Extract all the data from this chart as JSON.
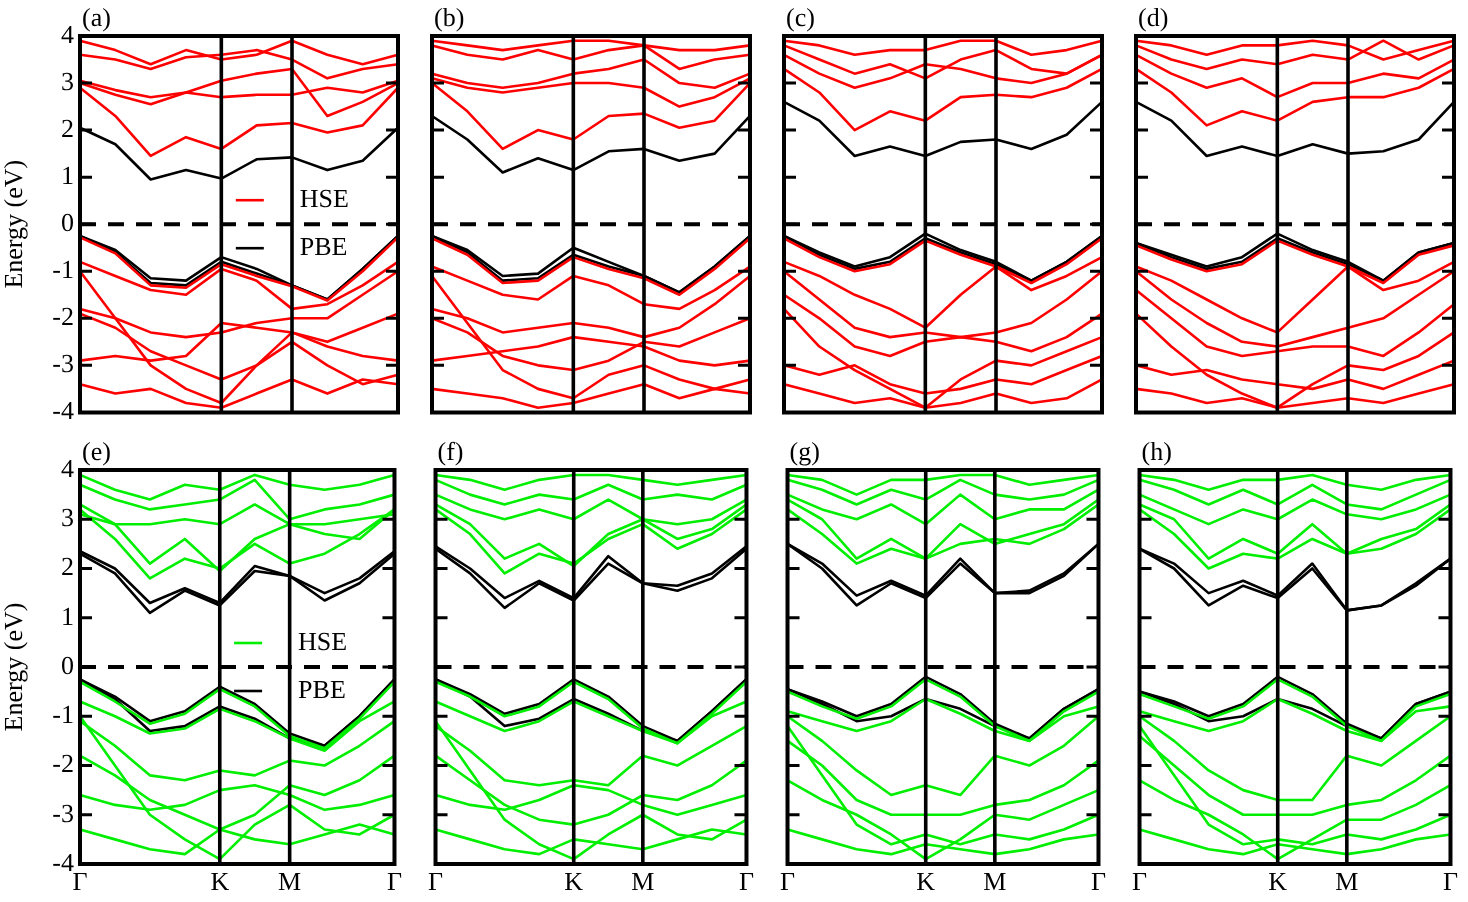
{
  "chart_data": [
    {
      "type": "line",
      "title": "(a)",
      "ylabel": "Energy (eV)",
      "categories": [
        "Γ",
        null,
        null,
        null,
        "K",
        null,
        "M",
        null,
        null,
        "Γ"
      ],
      "ylim": [
        -4,
        4
      ],
      "yticks": [
        -4,
        -3,
        -2,
        -1,
        0,
        1,
        2,
        3,
        4
      ],
      "tick_labels": "y",
      "legend": "center",
      "ref_lines": [
        {
          "axis": "x",
          "value": "K",
          "color": "#000000"
        },
        {
          "axis": "x",
          "value": "M",
          "color": "#000000"
        },
        {
          "axis": "y",
          "value": 0,
          "color": "#000000",
          "line_style": "dashed"
        }
      ],
      "series": [
        {
          "name": "HSE",
          "color": "#ff0000",
          "values": [
            2.9,
            2.3,
            1.45,
            1.85,
            1.6,
            2.1,
            2.15,
            1.95,
            2.1,
            2.9
          ]
        },
        {
          "name": "PBE",
          "color": "#000000",
          "values": [
            2.05,
            1.7,
            0.95,
            1.15,
            0.97,
            1.38,
            1.42,
            1.15,
            1.35,
            2.05
          ]
        },
        {
          "color": "#ff0000",
          "values": [
            3.0,
            2.75,
            2.55,
            2.8,
            3.05,
            3.2,
            3.3,
            2.3,
            2.6,
            3.0
          ]
        },
        {
          "color": "#ff0000",
          "values": [
            3.05,
            2.85,
            2.7,
            2.8,
            2.7,
            2.75,
            2.75,
            2.9,
            2.8,
            3.05
          ]
        },
        {
          "color": "#ff0000",
          "values": [
            3.6,
            3.5,
            3.3,
            3.55,
            3.6,
            3.7,
            3.5,
            3.1,
            3.3,
            3.4
          ]
        },
        {
          "color": "#ff0000",
          "values": [
            3.9,
            3.7,
            3.4,
            3.7,
            3.5,
            3.6,
            3.9,
            3.6,
            3.4,
            3.6
          ]
        },
        {
          "color": "#ff0000",
          "values": [
            -0.28,
            -0.62,
            -1.3,
            -1.35,
            -0.85,
            -1.1,
            -1.32,
            -1.62,
            -1.0,
            -0.28
          ]
        },
        {
          "color": "#ff0000",
          "values": [
            -0.8,
            -1.1,
            -1.4,
            -1.5,
            -0.95,
            -1.2,
            -1.8,
            -1.7,
            -1.3,
            -0.8
          ]
        },
        {
          "color": "#ff0000",
          "values": [
            -1.8,
            -2.0,
            -2.3,
            -2.4,
            -2.3,
            -2.1,
            -2.0,
            -2.0,
            -1.5,
            -1.0
          ]
        },
        {
          "color": "#ff0000",
          "values": [
            -1.9,
            -2.2,
            -2.7,
            -3.0,
            -3.3,
            -3.0,
            -2.3,
            -2.5,
            -2.2,
            -1.9
          ]
        },
        {
          "color": "#ff0000",
          "values": [
            -2.9,
            -2.8,
            -2.9,
            -2.8,
            -2.1,
            -2.2,
            -2.3,
            -2.6,
            -2.8,
            -2.9
          ]
        },
        {
          "color": "#ff0000",
          "values": [
            -1.0,
            -2.0,
            -3.0,
            -3.5,
            -3.8,
            -3.0,
            -2.5,
            -3.0,
            -3.4,
            -3.2
          ]
        },
        {
          "color": "#ff0000",
          "values": [
            -3.4,
            -3.6,
            -3.5,
            -3.8,
            -3.9,
            -3.6,
            -3.3,
            -3.6,
            -3.3,
            -3.4
          ]
        },
        {
          "color": "#000000",
          "values": [
            -0.25,
            -0.55,
            -1.15,
            -1.2,
            -0.7,
            -0.95,
            -1.3,
            -1.6,
            -0.95,
            -0.25
          ]
        },
        {
          "color": "#000000",
          "values": [
            -0.25,
            -0.6,
            -1.25,
            -1.3,
            -0.8,
            -1.05,
            -1.3,
            -1.6,
            -0.95,
            -0.25
          ]
        }
      ]
    },
    {
      "type": "line",
      "title": "(b)",
      "categories": [
        "Γ",
        null,
        null,
        null,
        "K",
        null,
        "M",
        null,
        null,
        "Γ"
      ],
      "ylim": [
        -4,
        4
      ],
      "yticks": [
        -4,
        -3,
        -2,
        -1,
        0,
        1,
        2,
        3,
        4
      ],
      "tick_labels": false,
      "ref_lines": [
        {
          "axis": "x",
          "value": "K",
          "color": "#000000"
        },
        {
          "axis": "x",
          "value": "M",
          "color": "#000000"
        },
        {
          "axis": "y",
          "value": 0,
          "color": "#000000",
          "line_style": "dashed"
        }
      ],
      "series": [
        {
          "color": "#ff0000",
          "values": [
            3.0,
            2.4,
            1.6,
            2.0,
            1.8,
            2.3,
            2.35,
            2.05,
            2.2,
            3.0
          ]
        },
        {
          "color": "#000000",
          "values": [
            2.3,
            1.8,
            1.1,
            1.4,
            1.15,
            1.55,
            1.6,
            1.35,
            1.5,
            2.3
          ]
        },
        {
          "color": "#ff0000",
          "values": [
            3.1,
            2.9,
            2.8,
            2.9,
            3.0,
            3.0,
            2.9,
            2.5,
            2.7,
            3.1
          ]
        },
        {
          "color": "#ff0000",
          "values": [
            3.2,
            3.0,
            2.9,
            3.0,
            3.2,
            3.3,
            3.5,
            3.0,
            2.9,
            3.2
          ]
        },
        {
          "color": "#ff0000",
          "values": [
            3.8,
            3.6,
            3.5,
            3.7,
            3.5,
            3.7,
            3.8,
            3.3,
            3.5,
            3.6
          ]
        },
        {
          "color": "#ff0000",
          "values": [
            3.9,
            3.8,
            3.7,
            3.8,
            3.9,
            3.9,
            3.8,
            3.7,
            3.7,
            3.8
          ]
        },
        {
          "color": "#ff0000",
          "values": [
            -0.3,
            -0.65,
            -1.25,
            -1.2,
            -0.7,
            -0.95,
            -1.15,
            -1.5,
            -0.95,
            -0.3
          ]
        },
        {
          "color": "#ff0000",
          "values": [
            -0.9,
            -1.2,
            -1.5,
            -1.6,
            -1.1,
            -1.3,
            -1.7,
            -1.8,
            -1.4,
            -0.9
          ]
        },
        {
          "color": "#ff0000",
          "values": [
            -1.8,
            -2.0,
            -2.3,
            -2.2,
            -2.1,
            -2.2,
            -2.4,
            -2.2,
            -1.7,
            -1.1
          ]
        },
        {
          "color": "#ff0000",
          "values": [
            -2.0,
            -2.3,
            -2.8,
            -3.0,
            -3.1,
            -2.9,
            -2.5,
            -2.6,
            -2.3,
            -2.0
          ]
        },
        {
          "color": "#ff0000",
          "values": [
            -2.9,
            -2.8,
            -2.7,
            -2.6,
            -2.4,
            -2.5,
            -2.6,
            -2.9,
            -3.0,
            -2.9
          ]
        },
        {
          "color": "#ff0000",
          "values": [
            -1.1,
            -2.1,
            -3.1,
            -3.5,
            -3.7,
            -3.2,
            -3.0,
            -3.3,
            -3.5,
            -3.3
          ]
        },
        {
          "color": "#ff0000",
          "values": [
            -3.5,
            -3.6,
            -3.7,
            -3.9,
            -3.8,
            -3.6,
            -3.4,
            -3.7,
            -3.5,
            -3.6
          ]
        },
        {
          "color": "#000000",
          "values": [
            -0.25,
            -0.55,
            -1.1,
            -1.05,
            -0.5,
            -0.8,
            -1.1,
            -1.45,
            -0.9,
            -0.25
          ]
        },
        {
          "color": "#000000",
          "values": [
            -0.25,
            -0.6,
            -1.2,
            -1.15,
            -0.65,
            -0.9,
            -1.1,
            -1.45,
            -0.9,
            -0.25
          ]
        }
      ]
    },
    {
      "type": "line",
      "title": "(c)",
      "categories": [
        "Γ",
        null,
        null,
        null,
        "K",
        null,
        "M",
        null,
        null,
        "Γ"
      ],
      "ylim": [
        -4,
        4
      ],
      "yticks": [
        -4,
        -3,
        -2,
        -1,
        0,
        1,
        2,
        3,
        4
      ],
      "tick_labels": false,
      "ref_lines": [
        {
          "axis": "x",
          "value": "K",
          "color": "#000000"
        },
        {
          "axis": "x",
          "value": "M",
          "color": "#000000"
        },
        {
          "axis": "y",
          "value": 0,
          "color": "#000000",
          "line_style": "dashed"
        }
      ],
      "series": [
        {
          "color": "#ff0000",
          "values": [
            3.3,
            2.8,
            2.0,
            2.4,
            2.2,
            2.7,
            2.75,
            2.7,
            2.9,
            3.3
          ]
        },
        {
          "color": "#000000",
          "values": [
            2.6,
            2.2,
            1.45,
            1.65,
            1.45,
            1.75,
            1.8,
            1.6,
            1.9,
            2.6
          ]
        },
        {
          "color": "#ff0000",
          "values": [
            3.6,
            3.2,
            2.9,
            3.1,
            3.4,
            3.3,
            3.1,
            3.0,
            3.2,
            3.6
          ]
        },
        {
          "color": "#ff0000",
          "values": [
            3.8,
            3.5,
            3.2,
            3.4,
            3.1,
            3.5,
            3.7,
            3.3,
            3.2,
            3.6
          ]
        },
        {
          "color": "#ff0000",
          "values": [
            3.9,
            3.8,
            3.6,
            3.7,
            3.7,
            3.9,
            3.9,
            3.6,
            3.7,
            3.9
          ]
        },
        {
          "color": "#ff0000",
          "values": [
            -0.3,
            -0.7,
            -1.0,
            -0.85,
            -0.35,
            -0.65,
            -0.9,
            -1.25,
            -0.85,
            -0.3
          ]
        },
        {
          "color": "#ff0000",
          "values": [
            -0.8,
            -1.1,
            -1.5,
            -1.8,
            -2.2,
            -1.5,
            -0.9,
            -1.4,
            -1.1,
            -0.7
          ]
        },
        {
          "color": "#ff0000",
          "values": [
            -1.0,
            -1.6,
            -2.2,
            -2.4,
            -2.3,
            -2.4,
            -2.3,
            -2.1,
            -1.6,
            -1.0
          ]
        },
        {
          "color": "#ff0000",
          "values": [
            -1.5,
            -2.0,
            -2.6,
            -2.8,
            -2.5,
            -2.4,
            -2.5,
            -2.7,
            -2.4,
            -1.9
          ]
        },
        {
          "color": "#ff0000",
          "values": [
            -1.8,
            -2.6,
            -3.1,
            -3.5,
            -3.9,
            -3.3,
            -2.9,
            -3.0,
            -2.7,
            -2.4
          ]
        },
        {
          "color": "#ff0000",
          "values": [
            -3.0,
            -3.2,
            -3.0,
            -3.4,
            -3.6,
            -3.5,
            -3.3,
            -3.4,
            -3.1,
            -2.8
          ]
        },
        {
          "color": "#ff0000",
          "values": [
            -3.4,
            -3.6,
            -3.8,
            -3.7,
            -3.9,
            -3.8,
            -3.6,
            -3.8,
            -3.7,
            -3.3
          ]
        },
        {
          "color": "#000000",
          "values": [
            -0.25,
            -0.6,
            -0.9,
            -0.7,
            -0.2,
            -0.55,
            -0.8,
            -1.2,
            -0.8,
            -0.25
          ]
        },
        {
          "color": "#000000",
          "values": [
            -0.25,
            -0.65,
            -0.95,
            -0.8,
            -0.3,
            -0.6,
            -0.85,
            -1.2,
            -0.8,
            -0.25
          ]
        }
      ]
    },
    {
      "type": "line",
      "title": "(d)",
      "categories": [
        "Γ",
        null,
        null,
        null,
        "K",
        null,
        "M",
        null,
        null,
        "Γ"
      ],
      "ylim": [
        -4,
        4
      ],
      "yticks": [
        -4,
        -3,
        -2,
        -1,
        0,
        1,
        2,
        3,
        4
      ],
      "tick_labels": false,
      "ref_lines": [
        {
          "axis": "x",
          "value": "K",
          "color": "#000000"
        },
        {
          "axis": "x",
          "value": "M",
          "color": "#000000"
        },
        {
          "axis": "y",
          "value": 0,
          "color": "#000000",
          "line_style": "dashed"
        }
      ],
      "series": [
        {
          "color": "#ff0000",
          "values": [
            3.3,
            2.8,
            2.1,
            2.4,
            2.2,
            2.6,
            2.7,
            2.7,
            2.9,
            3.3
          ]
        },
        {
          "color": "#000000",
          "values": [
            2.6,
            2.2,
            1.45,
            1.65,
            1.45,
            1.7,
            1.5,
            1.55,
            1.8,
            2.6
          ]
        },
        {
          "color": "#ff0000",
          "values": [
            3.6,
            3.2,
            2.9,
            3.1,
            2.7,
            3.0,
            3.0,
            3.2,
            3.1,
            3.5
          ]
        },
        {
          "color": "#ff0000",
          "values": [
            3.8,
            3.5,
            3.3,
            3.5,
            3.4,
            3.6,
            3.5,
            3.9,
            3.5,
            3.8
          ]
        },
        {
          "color": "#ff0000",
          "values": [
            3.9,
            3.8,
            3.6,
            3.8,
            3.8,
            3.9,
            3.8,
            3.5,
            3.7,
            3.9
          ]
        },
        {
          "color": "#ff0000",
          "values": [
            -0.45,
            -0.75,
            -1.0,
            -0.85,
            -0.35,
            -0.65,
            -0.9,
            -1.25,
            -0.65,
            -0.45
          ]
        },
        {
          "color": "#ff0000",
          "values": [
            -0.9,
            -1.2,
            -1.6,
            -2.0,
            -2.3,
            -1.6,
            -0.9,
            -1.4,
            -1.2,
            -0.8
          ]
        },
        {
          "color": "#ff0000",
          "values": [
            -1.0,
            -1.6,
            -2.1,
            -2.5,
            -2.6,
            -2.4,
            -2.2,
            -2.0,
            -1.5,
            -1.0
          ]
        },
        {
          "color": "#ff0000",
          "values": [
            -1.4,
            -2.0,
            -2.6,
            -2.8,
            -2.7,
            -2.6,
            -2.6,
            -2.8,
            -2.3,
            -1.7
          ]
        },
        {
          "color": "#ff0000",
          "values": [
            -1.9,
            -2.6,
            -3.2,
            -3.6,
            -3.9,
            -3.4,
            -3.0,
            -3.1,
            -2.8,
            -2.3
          ]
        },
        {
          "color": "#ff0000",
          "values": [
            -3.0,
            -3.2,
            -3.1,
            -3.3,
            -3.4,
            -3.5,
            -3.3,
            -3.5,
            -3.2,
            -2.9
          ]
        },
        {
          "color": "#ff0000",
          "values": [
            -3.5,
            -3.6,
            -3.8,
            -3.7,
            -3.9,
            -3.8,
            -3.7,
            -3.8,
            -3.6,
            -3.4
          ]
        },
        {
          "color": "#000000",
          "values": [
            -0.4,
            -0.65,
            -0.9,
            -0.7,
            -0.2,
            -0.55,
            -0.8,
            -1.2,
            -0.6,
            -0.4
          ]
        },
        {
          "color": "#000000",
          "values": [
            -0.4,
            -0.7,
            -0.95,
            -0.8,
            -0.3,
            -0.6,
            -0.85,
            -1.2,
            -0.6,
            -0.4
          ]
        }
      ]
    },
    {
      "type": "line",
      "title": "(e)",
      "ylabel": "Energy (eV)",
      "categories": [
        "Γ",
        null,
        null,
        null,
        "K",
        null,
        "M",
        null,
        null,
        "Γ"
      ],
      "ylim": [
        -4,
        4
      ],
      "yticks": [
        -4,
        -3,
        -2,
        -1,
        0,
        1,
        2,
        3,
        4
      ],
      "legend": "center",
      "ref_lines": [
        {
          "axis": "x",
          "value": "K",
          "color": "#000000"
        },
        {
          "axis": "x",
          "value": "M",
          "color": "#000000"
        },
        {
          "axis": "y",
          "value": 0,
          "color": "#000000",
          "line_style": "dashed"
        }
      ],
      "series": [
        {
          "name": "HSE",
          "color": "#00ee00",
          "values": [
            3.2,
            2.6,
            1.8,
            2.2,
            2.0,
            2.5,
            2.1,
            2.3,
            2.7,
            3.2
          ]
        },
        {
          "name": "PBE",
          "color": "#000000",
          "values": [
            2.35,
            2.0,
            1.3,
            1.6,
            1.3,
            2.05,
            1.85,
            1.5,
            1.8,
            2.35
          ]
        },
        {
          "color": "#000000",
          "values": [
            2.3,
            1.9,
            1.1,
            1.55,
            1.25,
            1.95,
            1.85,
            1.35,
            1.7,
            2.3
          ]
        },
        {
          "color": "#00ee00",
          "values": [
            3.3,
            2.9,
            2.1,
            2.6,
            1.95,
            2.6,
            2.9,
            2.7,
            2.6,
            3.2
          ]
        },
        {
          "color": "#00ee00",
          "values": [
            3.1,
            2.9,
            2.9,
            3.0,
            2.9,
            3.3,
            2.9,
            2.9,
            3.0,
            3.1
          ]
        },
        {
          "color": "#00ee00",
          "values": [
            3.7,
            3.4,
            3.2,
            3.3,
            3.4,
            3.8,
            3.0,
            3.2,
            3.3,
            3.5
          ]
        },
        {
          "color": "#00ee00",
          "values": [
            3.9,
            3.6,
            3.4,
            3.7,
            3.6,
            3.9,
            3.7,
            3.6,
            3.7,
            3.9
          ]
        },
        {
          "color": "#00ee00",
          "values": [
            -0.3,
            -0.7,
            -1.15,
            -0.95,
            -0.45,
            -0.8,
            -1.4,
            -1.65,
            -1.05,
            -0.3
          ]
        },
        {
          "color": "#00ee00",
          "values": [
            -0.7,
            -1.0,
            -1.35,
            -1.25,
            -0.85,
            -1.1,
            -1.45,
            -1.7,
            -1.1,
            -0.7
          ]
        },
        {
          "color": "#00ee00",
          "values": [
            -1.1,
            -1.6,
            -2.2,
            -2.3,
            -2.1,
            -2.2,
            -1.9,
            -2.0,
            -1.6,
            -1.1
          ]
        },
        {
          "color": "#00ee00",
          "values": [
            -1.8,
            -2.2,
            -2.7,
            -3.0,
            -3.3,
            -3.0,
            -2.4,
            -2.6,
            -2.3,
            -1.8
          ]
        },
        {
          "color": "#00ee00",
          "values": [
            -2.6,
            -2.8,
            -2.9,
            -2.8,
            -2.5,
            -2.4,
            -2.6,
            -2.9,
            -2.8,
            -2.6
          ]
        },
        {
          "color": "#00ee00",
          "values": [
            -1.0,
            -2.0,
            -3.0,
            -3.5,
            -3.9,
            -3.2,
            -2.8,
            -3.3,
            -3.4,
            -3.0
          ]
        },
        {
          "color": "#00ee00",
          "values": [
            -3.3,
            -3.5,
            -3.7,
            -3.8,
            -3.3,
            -3.5,
            -3.6,
            -3.4,
            -3.2,
            -3.4
          ]
        },
        {
          "color": "#000000",
          "values": [
            -0.25,
            -0.6,
            -1.1,
            -0.9,
            -0.4,
            -0.75,
            -1.35,
            -1.6,
            -1.0,
            -0.25
          ]
        },
        {
          "color": "#000000",
          "values": [
            -0.25,
            -0.65,
            -1.3,
            -1.2,
            -0.8,
            -1.05,
            -1.45,
            -1.6,
            -1.0,
            -0.25
          ]
        }
      ]
    },
    {
      "type": "line",
      "title": "(f)",
      "categories": [
        "Γ",
        null,
        null,
        null,
        "K",
        null,
        "M",
        null,
        null,
        "Γ"
      ],
      "ylim": [
        -4,
        4
      ],
      "yticks": [
        -4,
        -3,
        -2,
        -1,
        0,
        1,
        2,
        3,
        4
      ],
      "tick_labels": "x",
      "ref_lines": [
        {
          "axis": "x",
          "value": "K",
          "color": "#000000"
        },
        {
          "axis": "x",
          "value": "M",
          "color": "#000000"
        },
        {
          "axis": "y",
          "value": 0,
          "color": "#000000",
          "line_style": "dashed"
        }
      ],
      "series": [
        {
          "color": "#00ee00",
          "values": [
            3.2,
            2.7,
            1.9,
            2.3,
            2.1,
            2.6,
            2.9,
            2.4,
            2.7,
            3.2
          ]
        },
        {
          "color": "#000000",
          "values": [
            2.45,
            2.0,
            1.4,
            1.75,
            1.4,
            2.25,
            1.7,
            1.65,
            1.9,
            2.45
          ]
        },
        {
          "color": "#000000",
          "values": [
            2.4,
            1.9,
            1.2,
            1.7,
            1.35,
            2.1,
            1.7,
            1.55,
            1.8,
            2.4
          ]
        },
        {
          "color": "#00ee00",
          "values": [
            3.3,
            2.9,
            2.2,
            2.5,
            2.05,
            2.7,
            3.0,
            2.6,
            2.8,
            3.3
          ]
        },
        {
          "color": "#00ee00",
          "values": [
            3.5,
            3.2,
            3.0,
            3.2,
            3.0,
            3.4,
            3.0,
            2.9,
            3.0,
            3.4
          ]
        },
        {
          "color": "#00ee00",
          "values": [
            3.8,
            3.5,
            3.3,
            3.5,
            3.4,
            3.7,
            3.4,
            3.5,
            3.4,
            3.7
          ]
        },
        {
          "color": "#00ee00",
          "values": [
            3.9,
            3.8,
            3.6,
            3.8,
            3.9,
            3.9,
            3.8,
            3.7,
            3.8,
            3.9
          ]
        },
        {
          "color": "#00ee00",
          "values": [
            -0.3,
            -0.6,
            -1.0,
            -0.8,
            -0.3,
            -0.65,
            -1.25,
            -1.55,
            -0.95,
            -0.3
          ]
        },
        {
          "color": "#00ee00",
          "values": [
            -0.7,
            -1.0,
            -1.3,
            -1.1,
            -0.7,
            -1.0,
            -1.3,
            -1.55,
            -1.0,
            -0.7
          ]
        },
        {
          "color": "#00ee00",
          "values": [
            -1.2,
            -1.7,
            -2.3,
            -2.4,
            -2.3,
            -2.4,
            -1.8,
            -2.0,
            -1.6,
            -1.2
          ]
        },
        {
          "color": "#00ee00",
          "values": [
            -1.8,
            -2.3,
            -2.8,
            -3.1,
            -3.2,
            -3.0,
            -2.6,
            -2.7,
            -2.4,
            -1.9
          ]
        },
        {
          "color": "#00ee00",
          "values": [
            -2.6,
            -2.8,
            -2.9,
            -2.7,
            -2.4,
            -2.5,
            -2.8,
            -3.0,
            -2.8,
            -2.6
          ]
        },
        {
          "color": "#00ee00",
          "values": [
            -1.1,
            -2.1,
            -3.1,
            -3.6,
            -3.9,
            -3.4,
            -3.0,
            -3.4,
            -3.5,
            -3.1
          ]
        },
        {
          "color": "#00ee00",
          "values": [
            -3.3,
            -3.5,
            -3.7,
            -3.8,
            -3.5,
            -3.6,
            -3.7,
            -3.5,
            -3.3,
            -3.4
          ]
        },
        {
          "color": "#000000",
          "values": [
            -0.25,
            -0.55,
            -0.95,
            -0.75,
            -0.25,
            -0.6,
            -1.2,
            -1.5,
            -0.9,
            -0.25
          ]
        },
        {
          "color": "#000000",
          "values": [
            -0.25,
            -0.6,
            -1.2,
            -1.05,
            -0.65,
            -0.95,
            -1.3,
            -1.5,
            -0.9,
            -0.25
          ]
        }
      ]
    },
    {
      "type": "line",
      "title": "(g)",
      "categories": [
        "Γ",
        null,
        null,
        null,
        "K",
        null,
        "M",
        null,
        null,
        "Γ"
      ],
      "ylim": [
        -4,
        4
      ],
      "yticks": [
        -4,
        -3,
        -2,
        -1,
        0,
        1,
        2,
        3,
        4
      ],
      "tick_labels": "x",
      "ref_lines": [
        {
          "axis": "x",
          "value": "K",
          "color": "#000000"
        },
        {
          "axis": "x",
          "value": "M",
          "color": "#000000"
        },
        {
          "axis": "y",
          "value": 0,
          "color": "#000000",
          "line_style": "dashed"
        }
      ],
      "series": [
        {
          "color": "#00ee00",
          "values": [
            3.2,
            2.7,
            2.1,
            2.4,
            2.2,
            2.5,
            2.6,
            2.5,
            2.8,
            3.3
          ]
        },
        {
          "color": "#000000",
          "values": [
            2.5,
            2.1,
            1.45,
            1.75,
            1.45,
            2.2,
            1.5,
            1.55,
            1.9,
            2.5
          ]
        },
        {
          "color": "#000000",
          "values": [
            2.5,
            2.0,
            1.25,
            1.7,
            1.4,
            2.1,
            1.5,
            1.5,
            1.85,
            2.5
          ]
        },
        {
          "color": "#00ee00",
          "values": [
            3.4,
            3.0,
            2.2,
            2.6,
            2.2,
            2.9,
            2.5,
            2.7,
            2.9,
            3.4
          ]
        },
        {
          "color": "#00ee00",
          "values": [
            3.5,
            3.2,
            3.0,
            3.3,
            2.9,
            3.5,
            3.0,
            3.2,
            3.2,
            3.6
          ]
        },
        {
          "color": "#00ee00",
          "values": [
            3.8,
            3.6,
            3.3,
            3.6,
            3.4,
            3.8,
            3.5,
            3.4,
            3.5,
            3.8
          ]
        },
        {
          "color": "#00ee00",
          "values": [
            3.9,
            3.8,
            3.5,
            3.8,
            3.8,
            3.9,
            3.9,
            3.7,
            3.8,
            3.9
          ]
        },
        {
          "color": "#00ee00",
          "values": [
            -0.5,
            -0.8,
            -1.05,
            -0.8,
            -0.25,
            -0.6,
            -1.2,
            -1.5,
            -0.9,
            -0.5
          ]
        },
        {
          "color": "#00ee00",
          "values": [
            -0.9,
            -1.1,
            -1.3,
            -1.1,
            -0.65,
            -0.95,
            -1.3,
            -1.5,
            -1.0,
            -0.8
          ]
        },
        {
          "color": "#00ee00",
          "values": [
            -1.0,
            -1.5,
            -2.1,
            -2.6,
            -2.4,
            -2.6,
            -1.8,
            -2.0,
            -1.6,
            -1.0
          ]
        },
        {
          "color": "#00ee00",
          "values": [
            -1.5,
            -2.0,
            -2.7,
            -3.0,
            -3.0,
            -3.0,
            -2.8,
            -2.7,
            -2.4,
            -1.9
          ]
        },
        {
          "color": "#00ee00",
          "values": [
            -2.3,
            -2.7,
            -3.0,
            -3.4,
            -3.9,
            -3.5,
            -3.0,
            -3.1,
            -2.8,
            -2.5
          ]
        },
        {
          "color": "#00ee00",
          "values": [
            -1.2,
            -2.2,
            -3.2,
            -3.6,
            -3.4,
            -3.6,
            -3.4,
            -3.5,
            -3.3,
            -3.0
          ]
        },
        {
          "color": "#00ee00",
          "values": [
            -3.3,
            -3.5,
            -3.7,
            -3.8,
            -3.6,
            -3.7,
            -3.8,
            -3.7,
            -3.5,
            -3.4
          ]
        },
        {
          "color": "#000000",
          "values": [
            -0.45,
            -0.7,
            -1.0,
            -0.75,
            -0.2,
            -0.55,
            -1.15,
            -1.45,
            -0.85,
            -0.45
          ]
        },
        {
          "color": "#000000",
          "values": [
            -0.45,
            -0.75,
            -1.1,
            -1.0,
            -0.65,
            -0.85,
            -1.2,
            -1.45,
            -0.85,
            -0.45
          ]
        }
      ]
    },
    {
      "type": "line",
      "title": "(h)",
      "categories": [
        "Γ",
        null,
        null,
        null,
        "K",
        null,
        "M",
        null,
        null,
        "Γ"
      ],
      "ylim": [
        -4,
        4
      ],
      "yticks": [
        -4,
        -3,
        -2,
        -1,
        0,
        1,
        2,
        3,
        4
      ],
      "tick_labels": "x",
      "ref_lines": [
        {
          "axis": "x",
          "value": "K",
          "color": "#000000"
        },
        {
          "axis": "x",
          "value": "M",
          "color": "#000000"
        },
        {
          "axis": "y",
          "value": 0,
          "color": "#000000",
          "line_style": "dashed"
        }
      ],
      "series": [
        {
          "color": "#00ee00",
          "values": [
            3.2,
            2.7,
            2.0,
            2.3,
            2.2,
            2.6,
            2.3,
            2.4,
            2.7,
            3.2
          ]
        },
        {
          "color": "#000000",
          "values": [
            2.4,
            2.1,
            1.5,
            1.75,
            1.45,
            2.1,
            1.15,
            1.25,
            1.7,
            2.2
          ]
        },
        {
          "color": "#000000",
          "values": [
            2.4,
            2.0,
            1.25,
            1.65,
            1.4,
            2.0,
            1.15,
            1.25,
            1.65,
            2.2
          ]
        },
        {
          "color": "#00ee00",
          "values": [
            3.3,
            3.0,
            2.2,
            2.6,
            2.3,
            2.9,
            2.3,
            2.6,
            2.8,
            3.3
          ]
        },
        {
          "color": "#00ee00",
          "values": [
            3.5,
            3.2,
            2.9,
            3.2,
            3.0,
            3.4,
            3.1,
            3.0,
            3.2,
            3.5
          ]
        },
        {
          "color": "#00ee00",
          "values": [
            3.8,
            3.6,
            3.3,
            3.6,
            3.3,
            3.7,
            3.3,
            3.2,
            3.5,
            3.8
          ]
        },
        {
          "color": "#00ee00",
          "values": [
            3.9,
            3.8,
            3.6,
            3.8,
            3.8,
            3.9,
            3.7,
            3.6,
            3.8,
            3.9
          ]
        },
        {
          "color": "#00ee00",
          "values": [
            -0.55,
            -0.8,
            -1.05,
            -0.8,
            -0.25,
            -0.6,
            -1.2,
            -1.5,
            -0.8,
            -0.55
          ]
        },
        {
          "color": "#00ee00",
          "values": [
            -0.9,
            -1.1,
            -1.3,
            -1.1,
            -0.65,
            -0.95,
            -1.3,
            -1.5,
            -0.9,
            -0.8
          ]
        },
        {
          "color": "#00ee00",
          "values": [
            -1.0,
            -1.5,
            -2.1,
            -2.5,
            -2.7,
            -2.7,
            -1.8,
            -2.0,
            -1.5,
            -1.0
          ]
        },
        {
          "color": "#00ee00",
          "values": [
            -1.4,
            -2.0,
            -2.6,
            -3.0,
            -3.0,
            -3.0,
            -2.8,
            -2.7,
            -2.3,
            -1.8
          ]
        },
        {
          "color": "#00ee00",
          "values": [
            -2.3,
            -2.7,
            -3.0,
            -3.4,
            -3.9,
            -3.5,
            -3.1,
            -3.1,
            -2.8,
            -2.4
          ]
        },
        {
          "color": "#00ee00",
          "values": [
            -1.2,
            -2.2,
            -3.2,
            -3.6,
            -3.5,
            -3.6,
            -3.4,
            -3.5,
            -3.3,
            -3.0
          ]
        },
        {
          "color": "#00ee00",
          "values": [
            -3.3,
            -3.5,
            -3.7,
            -3.8,
            -3.6,
            -3.7,
            -3.8,
            -3.7,
            -3.5,
            -3.4
          ]
        },
        {
          "color": "#000000",
          "values": [
            -0.5,
            -0.7,
            -1.0,
            -0.75,
            -0.2,
            -0.55,
            -1.15,
            -1.45,
            -0.75,
            -0.5
          ]
        },
        {
          "color": "#000000",
          "values": [
            -0.5,
            -0.75,
            -1.1,
            -1.0,
            -0.65,
            -0.85,
            -1.2,
            -1.45,
            -0.75,
            -0.5
          ]
        }
      ]
    }
  ]
}
